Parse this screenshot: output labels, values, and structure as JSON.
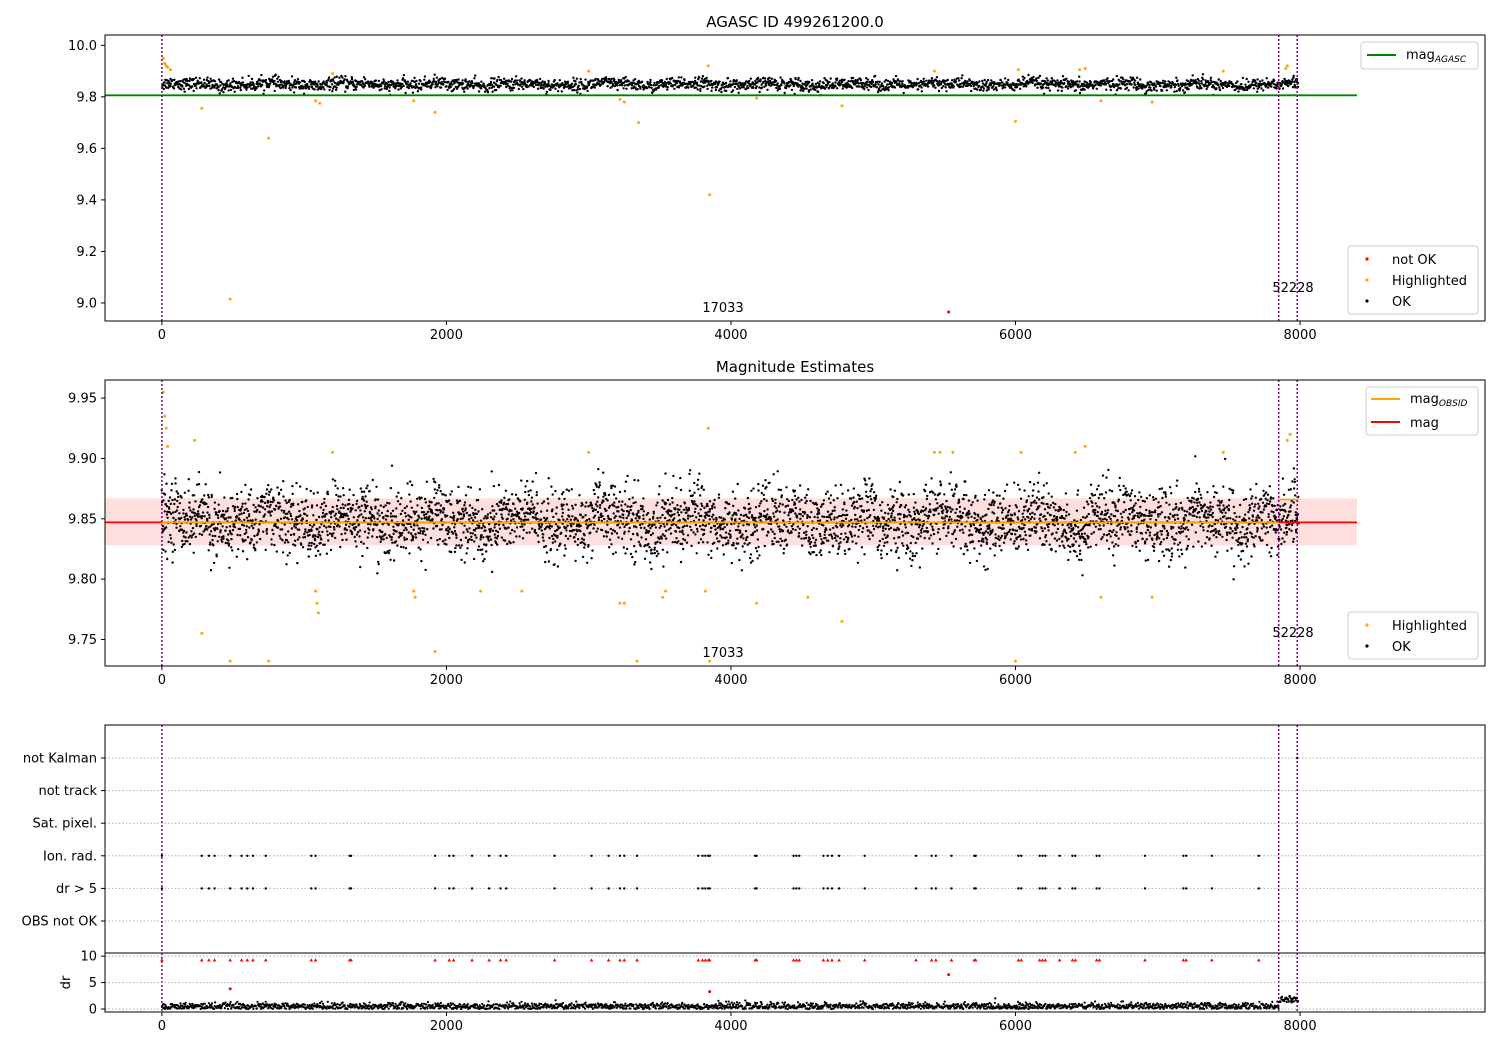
{
  "chart_data": [
    {
      "type": "scatter",
      "title": "AGASC ID 499261200.0",
      "xlim": [
        -400,
        9300
      ],
      "ylim": [
        8.93,
        10.04
      ],
      "xticks": [
        0,
        2000,
        4000,
        6000,
        8000
      ],
      "yticks": [
        9.0,
        9.2,
        9.4,
        9.6,
        9.8,
        10.0
      ],
      "ytick_labels": [
        "9.0",
        "9.2",
        "9.4",
        "9.6",
        "9.8",
        "10.0"
      ],
      "vlines": [
        0,
        7850,
        7980
      ],
      "vline_color": "#800080",
      "annotations": [
        {
          "text": "17033",
          "x": 3700,
          "y": 8.96
        },
        {
          "text": "52228",
          "x": 7700,
          "y": 9.02
        }
      ],
      "hline": {
        "name": "mag_AGASC",
        "value": 9.806,
        "xrange": [
          -400,
          8400
        ],
        "color": "#008000"
      },
      "series": [
        {
          "name": "not OK",
          "color": "#ff0000",
          "points": [
            [
              5530,
              8.965
            ]
          ]
        },
        {
          "name": "Highlighted",
          "color": "#ffa500",
          "points": [
            [
              10,
              9.95
            ],
            [
              20,
              9.93
            ],
            [
              30,
              9.92
            ],
            [
              40,
              9.915
            ],
            [
              60,
              9.905
            ],
            [
              280,
              9.755
            ],
            [
              480,
              9.015
            ],
            [
              750,
              9.64
            ],
            [
              1080,
              9.785
            ],
            [
              1110,
              9.775
            ],
            [
              1200,
              9.89
            ],
            [
              1770,
              9.785
            ],
            [
              1920,
              9.74
            ],
            [
              3000,
              9.9
            ],
            [
              3220,
              9.79
            ],
            [
              3250,
              9.78
            ],
            [
              3350,
              9.7
            ],
            [
              3840,
              9.92
            ],
            [
              3850,
              9.42
            ],
            [
              4180,
              9.795
            ],
            [
              4780,
              9.765
            ],
            [
              5430,
              9.9
            ],
            [
              6000,
              9.705
            ],
            [
              6020,
              9.905
            ],
            [
              6450,
              9.905
            ],
            [
              6490,
              9.91
            ],
            [
              6600,
              9.785
            ],
            [
              6960,
              9.78
            ],
            [
              7460,
              9.9
            ],
            [
              7900,
              9.91
            ],
            [
              7910,
              9.92
            ]
          ]
        },
        {
          "name": "OK",
          "color": "#000000",
          "band": {
            "x": [
              0,
              7990
            ],
            "center": 9.848,
            "spread": 0.022
          }
        }
      ],
      "legend_loc": "lower right",
      "legend_top": "upper right",
      "legend_top_labels": [
        "mag",
        "AGASC"
      ]
    },
    {
      "type": "scatter",
      "title": "Magnitude Estimates",
      "xlim": [
        -400,
        9300
      ],
      "ylim": [
        9.728,
        9.965
      ],
      "xticks": [
        0,
        2000,
        4000,
        6000,
        8000
      ],
      "yticks": [
        9.75,
        9.8,
        9.85,
        9.9,
        9.95
      ],
      "ytick_labels": [
        "9.75",
        "9.80",
        "9.85",
        "9.90",
        "9.95"
      ],
      "vlines": [
        0,
        7850,
        7980
      ],
      "annotations": [
        {
          "text": "17033",
          "x": 3700,
          "y": 9.735
        },
        {
          "text": "52228",
          "x": 7700,
          "y": 9.755
        }
      ],
      "mag": {
        "name": "mag",
        "value": 9.847,
        "band": [
          9.828,
          9.867
        ],
        "xrange": [
          -400,
          8400
        ],
        "color": "#ff0000"
      },
      "mag_obsid": {
        "name": "mag_OBSID",
        "color": "#ffa500"
      },
      "series": [
        {
          "name": "Highlighted",
          "color": "#ffa500",
          "points": [
            [
              10,
              9.955
            ],
            [
              20,
              9.935
            ],
            [
              30,
              9.925
            ],
            [
              40,
              9.91
            ],
            [
              230,
              9.915
            ],
            [
              280,
              9.755
            ],
            [
              480,
              9.732
            ],
            [
              750,
              9.732
            ],
            [
              1080,
              9.79
            ],
            [
              1090,
              9.78
            ],
            [
              1100,
              9.772
            ],
            [
              1200,
              9.905
            ],
            [
              1770,
              9.79
            ],
            [
              1780,
              9.785
            ],
            [
              1920,
              9.74
            ],
            [
              2240,
              9.79
            ],
            [
              2530,
              9.79
            ],
            [
              3000,
              9.905
            ],
            [
              3220,
              9.78
            ],
            [
              3250,
              9.78
            ],
            [
              3340,
              9.732
            ],
            [
              3520,
              9.785
            ],
            [
              3540,
              9.79
            ],
            [
              3820,
              9.79
            ],
            [
              3840,
              9.925
            ],
            [
              3850,
              9.732
            ],
            [
              4180,
              9.78
            ],
            [
              4540,
              9.785
            ],
            [
              4780,
              9.765
            ],
            [
              5430,
              9.905
            ],
            [
              5470,
              9.905
            ],
            [
              5560,
              9.905
            ],
            [
              6000,
              9.732
            ],
            [
              6040,
              9.905
            ],
            [
              6420,
              9.905
            ],
            [
              6490,
              9.91
            ],
            [
              6600,
              9.785
            ],
            [
              6960,
              9.785
            ],
            [
              7460,
              9.905
            ],
            [
              7910,
              9.915
            ],
            [
              7930,
              9.92
            ]
          ]
        },
        {
          "name": "OK",
          "color": "#000000",
          "band": {
            "x": [
              0,
              7990
            ],
            "center": 9.848,
            "spread": 0.025
          }
        }
      ],
      "legend_loc": "lower right",
      "legend_top": "upper right",
      "legend_top_labels": [
        "mag",
        "OBSID",
        "mag"
      ]
    },
    {
      "type": "scatter",
      "title": "",
      "xlim": [
        -400,
        9300
      ],
      "xticks": [
        0,
        2000,
        4000,
        6000,
        8000
      ],
      "vlines": [
        0,
        7850,
        7980
      ],
      "categories": [
        "not Kalman",
        "not track",
        "Sat. pixel.",
        "Ion. rad.",
        "dr > 5",
        "OBS not OK"
      ],
      "flag_x": [
        0,
        280,
        330,
        370,
        480,
        560,
        600,
        640,
        730,
        1050,
        1080,
        1320,
        1330,
        1920,
        2020,
        2050,
        2180,
        2300,
        2380,
        2420,
        2760,
        3020,
        3140,
        3220,
        3250,
        3340,
        3770,
        3800,
        3820,
        3840,
        3850,
        4170,
        4180,
        4440,
        4460,
        4480,
        4650,
        4680,
        4710,
        4760,
        4940,
        5300,
        5410,
        5440,
        5550,
        5710,
        5720,
        6020,
        6040,
        6170,
        6190,
        6210,
        6310,
        6400,
        6420,
        6570,
        6590,
        6910,
        7180,
        7200,
        7380,
        7710
      ],
      "flag_rows": [
        "Ion. rad.",
        "dr > 5"
      ],
      "dr_ylabel": "dr",
      "dr_yticks": [
        0,
        5,
        10
      ],
      "dr_clip": 10,
      "dr_high_points": [
        [
          480,
          3.8
        ],
        [
          3850,
          3.3
        ],
        [
          5530,
          6.5
        ]
      ],
      "dr_band": {
        "x": [
          0,
          7990
        ],
        "center": 0.5,
        "spread": 0.35
      }
    }
  ]
}
